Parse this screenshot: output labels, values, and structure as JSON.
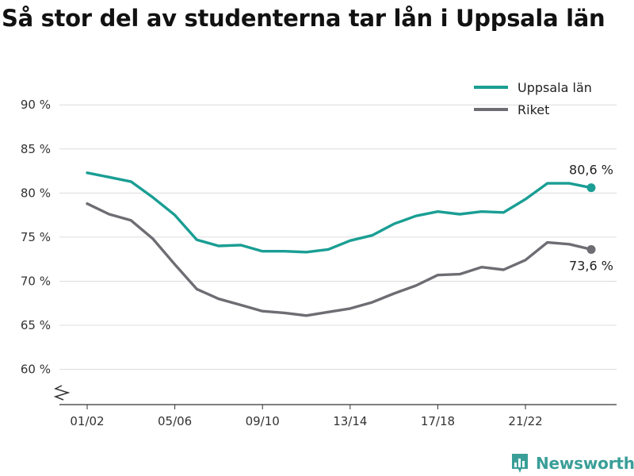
{
  "title": "Så stor del av studenterna tar lån i Uppsala län",
  "brand": {
    "name": "Newsworthy",
    "icon": "newsworthy-logo-icon",
    "color": "#3a9e98"
  },
  "chart_data": {
    "type": "line",
    "title": "Så stor del av studenterna tar lån i Uppsala län",
    "xlabel": "",
    "ylabel": "",
    "ylim": [
      56,
      92
    ],
    "y_ticks": [
      60,
      65,
      70,
      75,
      80,
      85,
      90
    ],
    "y_tick_labels": [
      "60 %",
      "65 %",
      "70 %",
      "75 %",
      "80 %",
      "85 %",
      "90 %"
    ],
    "y_axis_break": true,
    "grid": true,
    "legend": "top-right",
    "x": [
      "01/02",
      "02/03",
      "03/04",
      "04/05",
      "05/06",
      "06/07",
      "07/08",
      "08/09",
      "09/10",
      "10/11",
      "11/12",
      "12/13",
      "13/14",
      "14/15",
      "15/16",
      "16/17",
      "17/18",
      "18/19",
      "19/20",
      "20/21",
      "21/22",
      "22/23",
      "23/24",
      "24/25"
    ],
    "x_tick_labels": [
      "01/02",
      "05/06",
      "09/10",
      "13/14",
      "17/18",
      "21/22"
    ],
    "series": [
      {
        "name": "Uppsala län",
        "color": "#1a9e94",
        "values": [
          82.3,
          81.8,
          81.3,
          79.5,
          77.5,
          74.7,
          74.0,
          74.1,
          73.4,
          73.4,
          73.3,
          73.6,
          74.6,
          75.2,
          76.5,
          77.4,
          77.9,
          77.6,
          77.9,
          77.8,
          79.3,
          81.1,
          81.1,
          80.6
        ],
        "end_label": "80,6 %"
      },
      {
        "name": "Riket",
        "color": "#6e6d73",
        "values": [
          78.8,
          77.6,
          76.9,
          74.8,
          71.9,
          69.1,
          68.0,
          67.3,
          66.6,
          66.4,
          66.1,
          66.5,
          66.9,
          67.6,
          68.6,
          69.5,
          70.7,
          70.8,
          71.6,
          71.3,
          72.4,
          74.4,
          74.2,
          73.6
        ],
        "end_label": "73,6 %"
      }
    ]
  }
}
